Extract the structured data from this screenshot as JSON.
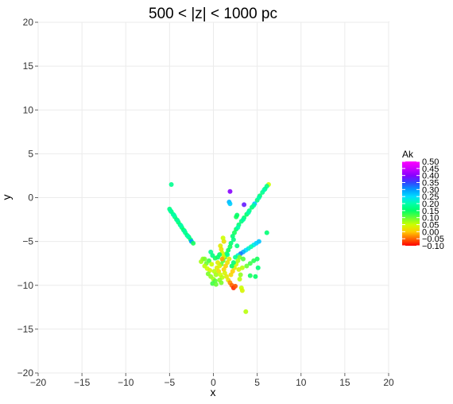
{
  "chart_data": {
    "type": "scatter",
    "title": "500 < |z| < 1000 pc",
    "xlabel": "x",
    "ylabel": "y",
    "xlim": [
      -20,
      20
    ],
    "ylim": [
      -20,
      20
    ],
    "xticks": [
      -20,
      -15,
      -10,
      -5,
      0,
      5,
      10,
      15,
      20
    ],
    "yticks": [
      -20,
      -15,
      -10,
      -5,
      0,
      5,
      10,
      15,
      20
    ],
    "grid": true,
    "legend": {
      "title": "Ak",
      "placement": "right",
      "range": [
        -0.1,
        0.5
      ],
      "ticks": [
        "0.50",
        "0.45",
        "0.40",
        "0.35",
        "0.30",
        "0.25",
        "0.20",
        "0.15",
        "0.10",
        "0.05",
        "0.00",
        "-0.05",
        "-0.10"
      ],
      "tick_values": [
        0.5,
        0.45,
        0.4,
        0.35,
        0.3,
        0.25,
        0.2,
        0.15,
        0.1,
        0.05,
        0.0,
        -0.05,
        -0.1
      ]
    },
    "colorscale": [
      "#ff0000",
      "#ff6600",
      "#ffcc00",
      "#ccff00",
      "#66ff33",
      "#00ff66",
      "#00ffaa",
      "#00ddff",
      "#0099ff",
      "#3344ff",
      "#8800ff",
      "#cc00ff",
      "#ff00ff"
    ],
    "points": [
      {
        "x": -4.8,
        "y": 1.5,
        "ak": 0.18
      },
      {
        "x": -5.0,
        "y": -1.3,
        "ak": 0.17
      },
      {
        "x": -4.8,
        "y": -1.6,
        "ak": 0.16
      },
      {
        "x": -4.6,
        "y": -1.9,
        "ak": 0.18
      },
      {
        "x": -4.4,
        "y": -2.2,
        "ak": 0.17
      },
      {
        "x": -4.2,
        "y": -2.5,
        "ak": 0.16
      },
      {
        "x": -4.0,
        "y": -2.8,
        "ak": 0.15
      },
      {
        "x": -3.8,
        "y": -3.1,
        "ak": 0.17
      },
      {
        "x": -3.6,
        "y": -3.4,
        "ak": 0.16
      },
      {
        "x": -3.4,
        "y": -3.7,
        "ak": 0.15
      },
      {
        "x": -3.2,
        "y": -4.0,
        "ak": 0.18
      },
      {
        "x": -3.0,
        "y": -4.3,
        "ak": 0.16
      },
      {
        "x": -2.8,
        "y": -4.5,
        "ak": 0.15
      },
      {
        "x": -2.6,
        "y": -4.8,
        "ak": 0.17
      },
      {
        "x": -2.5,
        "y": -5.0,
        "ak": 0.3
      },
      {
        "x": -2.3,
        "y": -5.2,
        "ak": 0.14
      },
      {
        "x": -4.9,
        "y": -1.5,
        "ak": 0.19
      },
      {
        "x": -4.5,
        "y": -2.0,
        "ak": 0.2
      },
      {
        "x": -4.1,
        "y": -2.6,
        "ak": 0.19
      },
      {
        "x": -3.7,
        "y": -3.2,
        "ak": 0.2
      },
      {
        "x": -3.3,
        "y": -3.8,
        "ak": 0.19
      },
      {
        "x": -2.9,
        "y": -4.4,
        "ak": 0.2
      },
      {
        "x": 6.3,
        "y": 1.5,
        "ak": 0.05
      },
      {
        "x": 6.1,
        "y": 1.3,
        "ak": 0.18
      },
      {
        "x": 5.9,
        "y": 1.0,
        "ak": 0.17
      },
      {
        "x": 5.6,
        "y": 0.6,
        "ak": 0.18
      },
      {
        "x": 5.3,
        "y": 0.2,
        "ak": 0.16
      },
      {
        "x": 5.0,
        "y": -0.3,
        "ak": 0.17
      },
      {
        "x": 4.7,
        "y": -0.7,
        "ak": 0.27
      },
      {
        "x": 4.4,
        "y": -1.1,
        "ak": 0.16
      },
      {
        "x": 4.1,
        "y": -1.5,
        "ak": 0.17
      },
      {
        "x": 3.8,
        "y": -1.9,
        "ak": 0.15
      },
      {
        "x": 3.5,
        "y": -2.3,
        "ak": 0.16
      },
      {
        "x": 3.2,
        "y": -2.7,
        "ak": 0.17
      },
      {
        "x": 2.9,
        "y": -3.1,
        "ak": 0.16
      },
      {
        "x": 2.6,
        "y": -3.6,
        "ak": 0.15
      },
      {
        "x": 2.4,
        "y": -4.0,
        "ak": 0.14
      },
      {
        "x": 2.2,
        "y": -4.4,
        "ak": 0.16
      },
      {
        "x": 5.8,
        "y": 0.9,
        "ak": 0.2
      },
      {
        "x": 5.2,
        "y": 0.0,
        "ak": 0.2
      },
      {
        "x": 4.6,
        "y": -0.9,
        "ak": 0.19
      },
      {
        "x": 4.0,
        "y": -1.7,
        "ak": 0.2
      },
      {
        "x": 3.4,
        "y": -2.5,
        "ak": 0.19
      },
      {
        "x": 2.8,
        "y": -3.4,
        "ak": 0.2
      },
      {
        "x": 1.9,
        "y": 0.7,
        "ak": 0.4
      },
      {
        "x": 3.5,
        "y": -0.8,
        "ak": 0.38
      },
      {
        "x": 1.8,
        "y": -0.5,
        "ak": 0.28
      },
      {
        "x": 1.9,
        "y": -0.7,
        "ak": 0.26
      },
      {
        "x": 2.6,
        "y": -2.2,
        "ak": 0.14
      },
      {
        "x": 2.7,
        "y": -2.0,
        "ak": 0.15
      },
      {
        "x": 6.1,
        "y": -4.0,
        "ak": 0.16
      },
      {
        "x": 5.2,
        "y": -5.0,
        "ak": 0.27
      },
      {
        "x": 4.9,
        "y": -5.2,
        "ak": 0.26
      },
      {
        "x": 4.6,
        "y": -5.4,
        "ak": 0.24
      },
      {
        "x": 4.3,
        "y": -5.6,
        "ak": 0.2
      },
      {
        "x": 4.0,
        "y": -5.8,
        "ak": 0.22
      },
      {
        "x": 3.7,
        "y": -6.0,
        "ak": 0.25
      },
      {
        "x": 3.4,
        "y": -6.2,
        "ak": 0.28
      },
      {
        "x": 3.1,
        "y": -6.4,
        "ak": 0.32
      },
      {
        "x": 2.8,
        "y": -6.6,
        "ak": 0.22
      },
      {
        "x": 2.5,
        "y": -6.8,
        "ak": 0.18
      },
      {
        "x": 2.3,
        "y": -4.8,
        "ak": 0.17
      },
      {
        "x": 2.0,
        "y": -5.2,
        "ak": 0.16
      },
      {
        "x": 1.9,
        "y": -5.6,
        "ak": 0.14
      },
      {
        "x": 1.7,
        "y": -6.0,
        "ak": 0.15
      },
      {
        "x": 1.5,
        "y": -6.4,
        "ak": 0.13
      },
      {
        "x": 1.3,
        "y": -6.8,
        "ak": 0.12
      },
      {
        "x": 1.1,
        "y": -7.2,
        "ak": 0.11
      },
      {
        "x": 0.9,
        "y": -7.6,
        "ak": 0.1
      },
      {
        "x": 0.8,
        "y": -5.5,
        "ak": 0.03
      },
      {
        "x": 0.9,
        "y": -5.9,
        "ak": 0.02
      },
      {
        "x": 1.0,
        "y": -6.3,
        "ak": 0.04
      },
      {
        "x": 1.2,
        "y": -6.7,
        "ak": 0.05
      },
      {
        "x": 1.0,
        "y": -7.0,
        "ak": -0.02
      },
      {
        "x": 0.7,
        "y": -6.5,
        "ak": 0.15
      },
      {
        "x": 0.5,
        "y": -6.8,
        "ak": 0.16
      },
      {
        "x": 0.2,
        "y": -6.9,
        "ak": 0.14
      },
      {
        "x": -0.3,
        "y": -6.2,
        "ak": 0.18
      },
      {
        "x": -0.1,
        "y": -6.6,
        "ak": 0.17
      },
      {
        "x": -0.5,
        "y": -7.2,
        "ak": 0.12
      },
      {
        "x": -0.8,
        "y": -7.5,
        "ak": 0.1
      },
      {
        "x": -1.2,
        "y": -7.0,
        "ak": 0.08
      },
      {
        "x": -1.4,
        "y": -7.3,
        "ak": 0.07
      },
      {
        "x": -1.0,
        "y": -7.8,
        "ak": 0.06
      },
      {
        "x": -0.7,
        "y": -8.1,
        "ak": 0.05
      },
      {
        "x": -0.4,
        "y": -8.3,
        "ak": 0.04
      },
      {
        "x": -0.6,
        "y": -8.7,
        "ak": 0.09
      },
      {
        "x": -0.3,
        "y": -9.0,
        "ak": 0.08
      },
      {
        "x": 0.0,
        "y": -9.3,
        "ak": 0.07
      },
      {
        "x": 0.2,
        "y": -9.5,
        "ak": 0.11
      },
      {
        "x": -0.1,
        "y": -9.8,
        "ak": 0.12
      },
      {
        "x": 0.3,
        "y": -9.9,
        "ak": 0.1
      },
      {
        "x": 0.4,
        "y": -8.0,
        "ak": 0.03
      },
      {
        "x": 0.6,
        "y": -8.4,
        "ak": 0.02
      },
      {
        "x": 0.8,
        "y": -8.8,
        "ak": 0.05
      },
      {
        "x": 1.0,
        "y": -9.1,
        "ak": 0.06
      },
      {
        "x": 1.2,
        "y": -8.2,
        "ak": 0.01
      },
      {
        "x": 1.4,
        "y": -7.8,
        "ak": 0.0
      },
      {
        "x": 1.6,
        "y": -7.4,
        "ak": 0.02
      },
      {
        "x": 1.8,
        "y": -7.0,
        "ak": 0.03
      },
      {
        "x": 1.3,
        "y": -8.6,
        "ak": 0.04
      },
      {
        "x": 1.5,
        "y": -9.0,
        "ak": 0.03
      },
      {
        "x": 1.7,
        "y": -9.4,
        "ak": 0.02
      },
      {
        "x": 1.9,
        "y": -9.7,
        "ak": -0.03
      },
      {
        "x": 2.1,
        "y": -10.0,
        "ak": -0.05
      },
      {
        "x": 2.3,
        "y": -10.3,
        "ak": -0.08
      },
      {
        "x": 2.5,
        "y": -10.1,
        "ak": -0.06
      },
      {
        "x": 2.0,
        "y": -8.8,
        "ak": 0.01
      },
      {
        "x": 2.2,
        "y": -8.4,
        "ak": 0.0
      },
      {
        "x": 2.4,
        "y": -8.0,
        "ak": 0.03
      },
      {
        "x": 2.6,
        "y": -7.6,
        "ak": 0.05
      },
      {
        "x": 2.8,
        "y": -7.2,
        "ak": 0.07
      },
      {
        "x": 3.0,
        "y": -6.8,
        "ak": 0.09
      },
      {
        "x": 2.9,
        "y": -8.2,
        "ak": 0.04
      },
      {
        "x": 3.3,
        "y": -8.0,
        "ak": 0.06
      },
      {
        "x": 3.8,
        "y": -7.8,
        "ak": 0.1
      },
      {
        "x": 4.2,
        "y": -7.5,
        "ak": 0.12
      },
      {
        "x": 4.6,
        "y": -7.2,
        "ak": 0.13
      },
      {
        "x": 5.0,
        "y": -7.0,
        "ak": 0.14
      },
      {
        "x": 5.1,
        "y": -8.0,
        "ak": 0.16
      },
      {
        "x": 4.8,
        "y": -9.0,
        "ak": 0.15
      },
      {
        "x": 4.2,
        "y": -8.9,
        "ak": 0.14
      },
      {
        "x": 3.1,
        "y": -8.8,
        "ak": 0.08
      },
      {
        "x": 3.0,
        "y": -9.3,
        "ak": 0.06
      },
      {
        "x": 3.2,
        "y": -10.3,
        "ak": 0.05
      },
      {
        "x": 3.3,
        "y": -10.6,
        "ak": 0.04
      },
      {
        "x": 3.7,
        "y": -13.0,
        "ak": 0.06
      },
      {
        "x": 0.7,
        "y": -9.4,
        "ak": 0.08
      },
      {
        "x": 0.9,
        "y": -9.7,
        "ak": 0.09
      },
      {
        "x": 0.5,
        "y": -7.4,
        "ak": 0.03
      },
      {
        "x": 0.7,
        "y": -7.8,
        "ak": 0.04
      },
      {
        "x": -0.2,
        "y": -7.6,
        "ak": 0.05
      },
      {
        "x": 0.1,
        "y": -8.4,
        "ak": 0.06
      },
      {
        "x": 0.3,
        "y": -8.8,
        "ak": 0.07
      },
      {
        "x": 2.1,
        "y": -7.8,
        "ak": 0.15
      },
      {
        "x": 2.3,
        "y": -7.4,
        "ak": 0.16
      },
      {
        "x": 1.6,
        "y": -6.5,
        "ak": 0.18
      },
      {
        "x": 2.7,
        "y": -5.5,
        "ak": 0.17
      },
      {
        "x": 3.4,
        "y": -7.0,
        "ak": 0.11
      },
      {
        "x": 1.2,
        "y": -5.0,
        "ak": 0.02
      },
      {
        "x": 1.1,
        "y": -4.6,
        "ak": 0.05
      },
      {
        "x": -1.0,
        "y": -7.0,
        "ak": 0.09
      }
    ]
  }
}
